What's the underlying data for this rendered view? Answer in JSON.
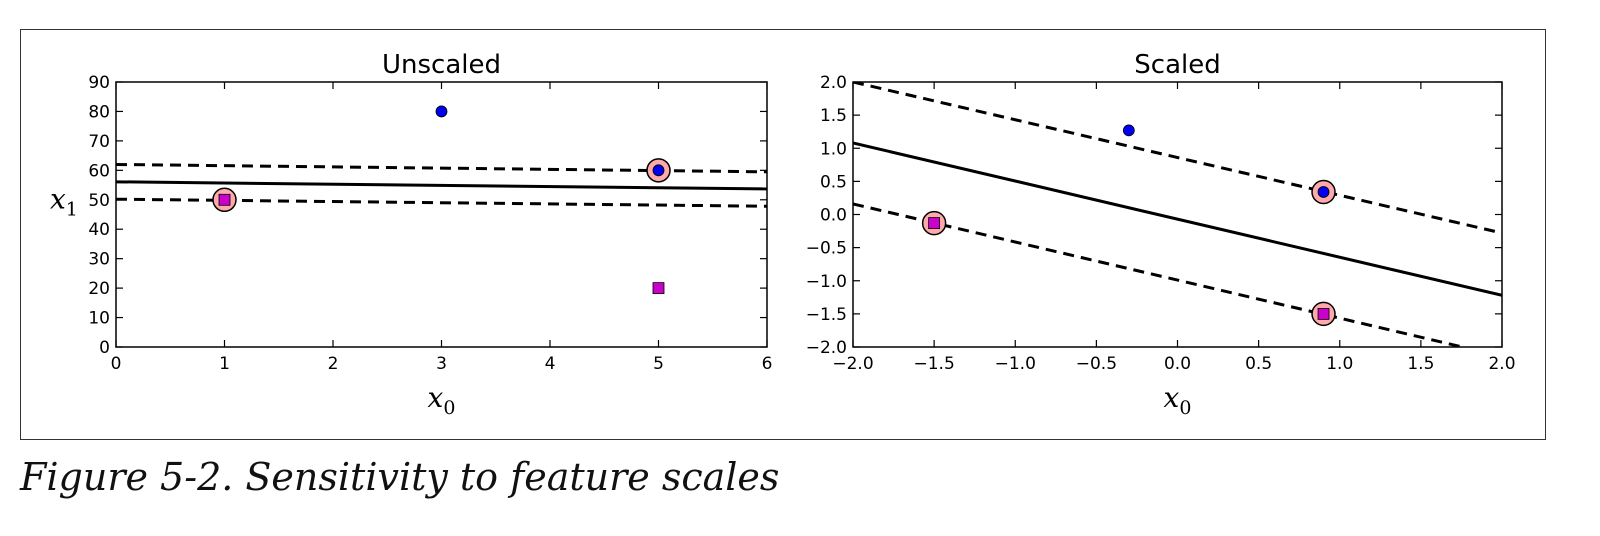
{
  "caption": "Figure 5-2. Sensitivity to feature scales",
  "colors": {
    "positive_point": "#0000ee",
    "negative_point": "#cc00cc",
    "support_vector_ring": "#ffaaaa",
    "line": "#000000"
  },
  "chart_data": [
    {
      "type": "scatter",
      "title": "Unscaled",
      "xlabel": "x0",
      "ylabel": "x1",
      "xlim": [
        0,
        6
      ],
      "ylim": [
        0,
        90
      ],
      "xticks": [
        "0",
        "1",
        "2",
        "3",
        "4",
        "5",
        "6"
      ],
      "yticks": [
        "0",
        "10",
        "20",
        "30",
        "40",
        "50",
        "60",
        "70",
        "80",
        "90"
      ],
      "series": [
        {
          "marker": "circle",
          "color": "#0000ee",
          "points": [
            [
              3,
              80
            ],
            [
              5,
              60
            ]
          ]
        },
        {
          "marker": "square",
          "color": "#cc00cc",
          "points": [
            [
              5,
              20
            ],
            [
              1,
              50
            ]
          ]
        }
      ],
      "support_vectors": [
        [
          1,
          50
        ],
        [
          5,
          60
        ]
      ],
      "lines": [
        {
          "style": "solid",
          "points": [
            [
              0,
              56.1
            ],
            [
              6,
              53.7
            ]
          ]
        },
        {
          "style": "dashed",
          "points": [
            [
              0,
              62.0
            ],
            [
              6,
              59.5
            ]
          ]
        },
        {
          "style": "dashed",
          "points": [
            [
              0,
              50.2
            ],
            [
              6,
              47.8
            ]
          ]
        }
      ],
      "grid": false
    },
    {
      "type": "scatter",
      "title": "Scaled",
      "xlabel": "x0",
      "ylabel": "",
      "xlim": [
        -2.0,
        2.0
      ],
      "ylim": [
        -2.0,
        2.0
      ],
      "xticks": [
        "−2.0",
        "−1.5",
        "−1.0",
        "−0.5",
        "0.0",
        "0.5",
        "1.0",
        "1.5",
        "2.0"
      ],
      "yticks": [
        "−2.0",
        "−1.5",
        "−1.0",
        "−0.5",
        "0.0",
        "0.5",
        "1.0",
        "1.5",
        "2.0"
      ],
      "series": [
        {
          "marker": "circle",
          "color": "#0000ee",
          "points": [
            [
              -0.3,
              1.27
            ],
            [
              0.9,
              0.34
            ]
          ]
        },
        {
          "marker": "square",
          "color": "#cc00cc",
          "points": [
            [
              0.9,
              -1.5
            ],
            [
              -1.5,
              -0.13
            ]
          ]
        }
      ],
      "support_vectors": [
        [
          -1.5,
          -0.13
        ],
        [
          0.9,
          0.34
        ],
        [
          0.9,
          -1.5
        ]
      ],
      "lines": [
        {
          "style": "solid",
          "points": [
            [
              -2.0,
              1.08
            ],
            [
              2.0,
              -1.22
            ]
          ]
        },
        {
          "style": "dashed",
          "points": [
            [
              -2.0,
              2.0
            ],
            [
              2.0,
              -0.28
            ]
          ]
        },
        {
          "style": "dashed",
          "points": [
            [
              -2.0,
              0.16
            ],
            [
              2.0,
              -2.14
            ]
          ]
        }
      ],
      "grid": false
    }
  ]
}
